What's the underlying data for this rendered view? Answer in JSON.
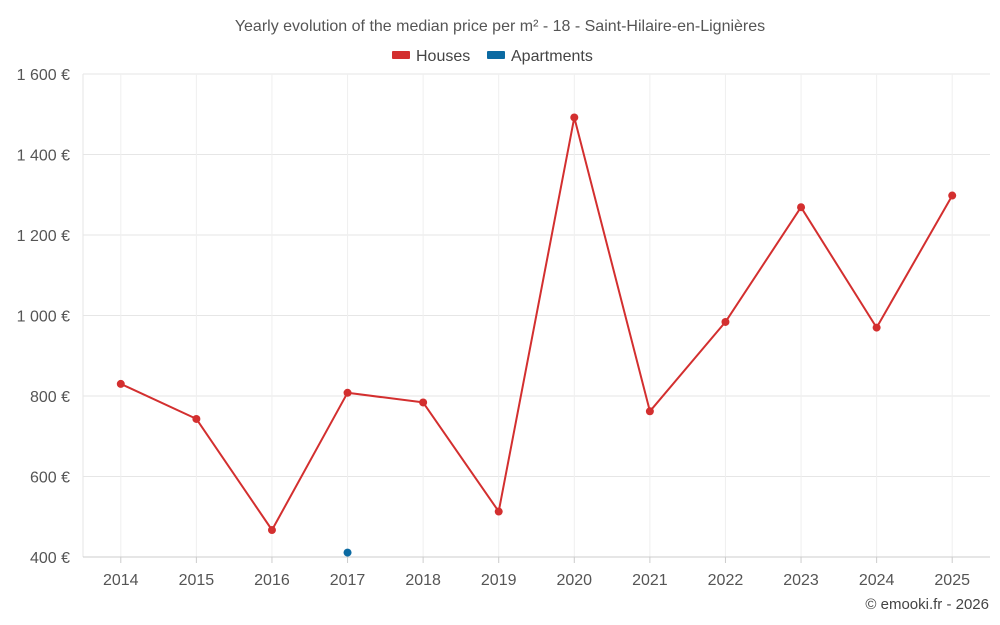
{
  "chart_data": {
    "type": "line",
    "title": "Yearly evolution of the median price per m² - 18 - Saint-Hilaire-en-Lignières",
    "categories": [
      "2014",
      "2015",
      "2016",
      "2017",
      "2018",
      "2019",
      "2020",
      "2021",
      "2022",
      "2023",
      "2024",
      "2025"
    ],
    "series": [
      {
        "name": "Houses",
        "color": "#d32f2f",
        "values": [
          830,
          743,
          467,
          808,
          784,
          513,
          1492,
          762,
          984,
          1269,
          970,
          1298
        ]
      },
      {
        "name": "Apartments",
        "color": "#0b6aa2",
        "values": [
          null,
          null,
          null,
          411,
          null,
          null,
          null,
          null,
          null,
          null,
          null,
          null
        ]
      }
    ],
    "ylim": [
      400,
      1600
    ],
    "yticks": [
      400,
      600,
      800,
      1000,
      1200,
      1400,
      1600
    ],
    "ytick_labels": [
      "400 €",
      "600 €",
      "800 €",
      "1 000 €",
      "1 200 €",
      "1 400 €",
      "1 600 €"
    ],
    "xlabel": "",
    "ylabel": "",
    "legend_position": "top-center",
    "grid": true,
    "credit": "© emooki.fr - 2026"
  }
}
